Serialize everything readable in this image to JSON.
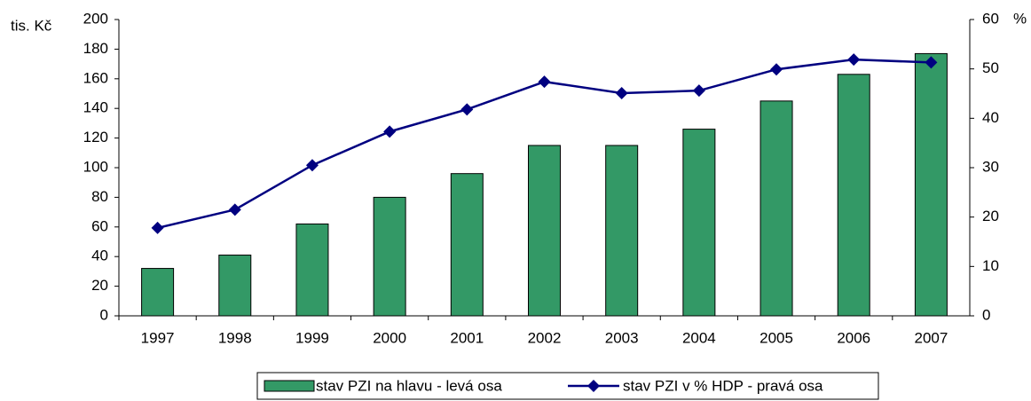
{
  "chart_data": {
    "type": "bar_line",
    "y_label": "tis. Kč",
    "y2_label": "%",
    "categories": [
      "1997",
      "1998",
      "1999",
      "2000",
      "2001",
      "2002",
      "2003",
      "2004",
      "2005",
      "2006",
      "2007"
    ],
    "series": [
      {
        "name": "stav PZI na hlavu - levá osa",
        "type": "bar",
        "color": "#339966",
        "values": [
          32,
          41,
          62,
          80,
          96,
          115,
          115,
          126,
          145,
          163,
          177
        ]
      },
      {
        "name": "stav PZI v % HDP - pravá osa",
        "type": "line",
        "axis": "y2",
        "color": "#000080",
        "values": [
          17.8,
          21.5,
          30.5,
          37.3,
          41.8,
          47.4,
          45.1,
          45.6,
          49.9,
          51.9,
          51.3
        ]
      }
    ],
    "ylim": [
      0,
      200
    ],
    "yticks": [
      0,
      20,
      40,
      60,
      80,
      100,
      120,
      140,
      160,
      180,
      200
    ],
    "y2lim": [
      0,
      60
    ],
    "y2ticks": [
      0,
      10,
      20,
      30,
      40,
      50,
      60
    ],
    "legend": "bottom"
  }
}
